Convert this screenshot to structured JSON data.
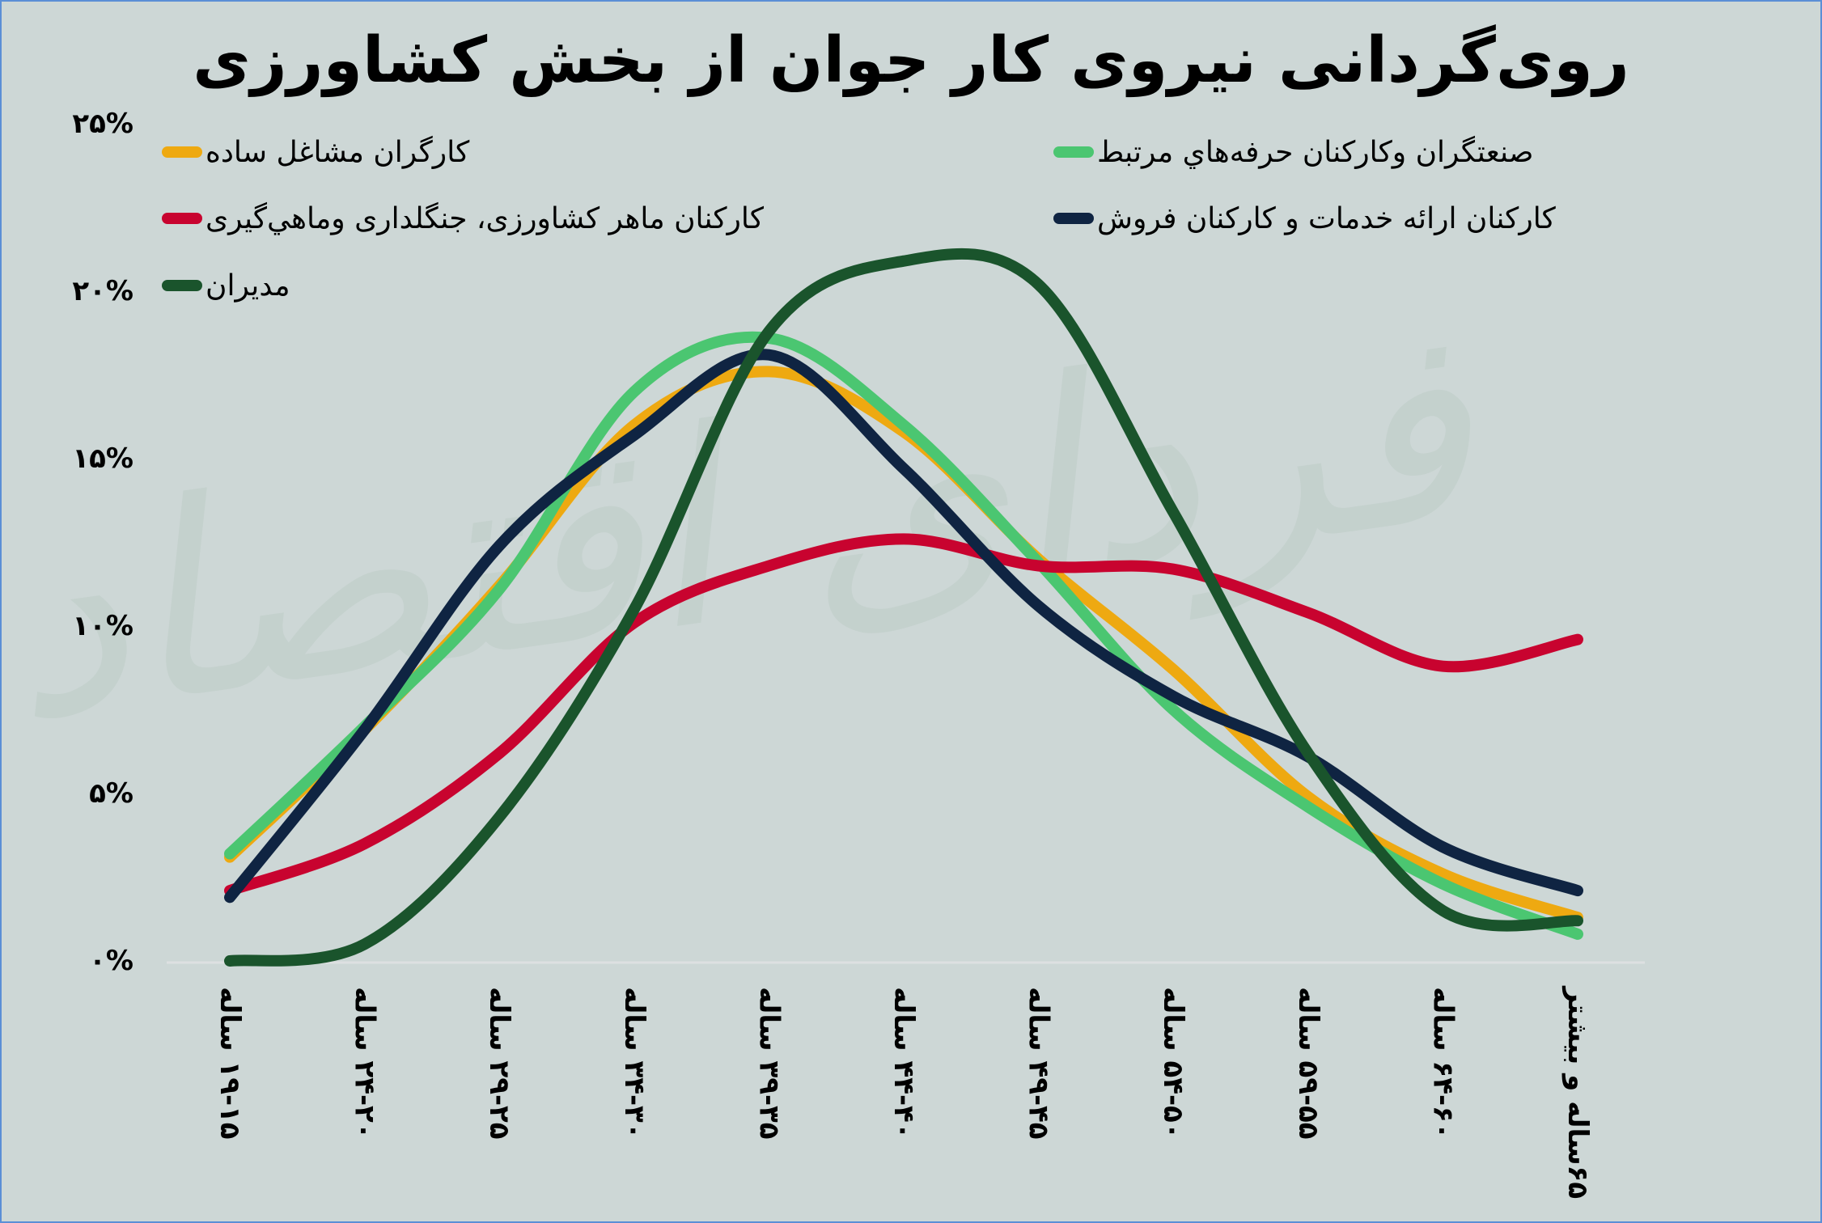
{
  "title": "روی‌گردانی نیروی کار جوان از بخش کشاورزی",
  "watermark": "فردای اقتصاد",
  "colors": {
    "background": "#cdd7d6",
    "border": "#5b8fd6",
    "axis": "#dddfe0"
  },
  "legend": [
    {
      "label": "کارگران مشاغل ساده",
      "color": "#eea911"
    },
    {
      "label": "کارکنان ماهر کشاورزی، جنگلداری وماهي‌گیری",
      "color": "#c8032f"
    },
    {
      "label": "مدیران",
      "color": "#1a542c"
    },
    {
      "label": "صنعتگران وکارکنان حرفه‌هاي مرتبط",
      "color": "#4bc671"
    },
    {
      "label": "کارکنان ارائه خدمات و کارکنان فروش",
      "color": "#0f2442"
    }
  ],
  "y_ticks": [
    "۰%",
    "۵%",
    "۱۰%",
    "۱۵%",
    "۲۰%",
    "۲۵%"
  ],
  "x_ticks": [
    "۱۹-۱۵ ساله",
    "۲۴-۲۰ ساله",
    "۲۹-۲۵ ساله",
    "۳۴-۳۰ ساله",
    "۳۹-۳۵ ساله",
    "۴۴-۴۰ ساله",
    "۴۹-۴۵ ساله",
    "۵۴-۵۰ ساله",
    "۵۹-۵۵ ساله",
    "۶۴-۶۰ ساله",
    "۶۵ساله و بیشتر"
  ],
  "chart_data": {
    "type": "line",
    "title": "روی‌گردانی نیروی کار جوان از بخش کشاورزی",
    "xlabel": "",
    "ylabel": "",
    "ylim": [
      0,
      25
    ],
    "y_unit": "%",
    "grid": false,
    "legend_position": "top",
    "smooth": true,
    "categories": [
      "۱۹-۱۵ ساله",
      "۲۴-۲۰ ساله",
      "۲۹-۲۵ ساله",
      "۳۴-۳۰ ساله",
      "۳۹-۳۵ ساله",
      "۴۴-۴۰ ساله",
      "۴۹-۴۵ ساله",
      "۵۴-۵۰ ساله",
      "۵۹-۵۵ ساله",
      "۶۴-۶۰ ساله",
      "۶۵ساله و بیشتر"
    ],
    "series": [
      {
        "name": "کارگران مشاغل ساده",
        "color": "#eea911",
        "values": [
          3.1,
          6.9,
          11.2,
          16.0,
          17.6,
          15.8,
          12.0,
          8.7,
          4.9,
          2.6,
          1.3
        ]
      },
      {
        "name": "صنعتگران وکارکنان حرفه‌هاي مرتبط",
        "color": "#4bc671",
        "values": [
          3.2,
          7.0,
          11.1,
          17.0,
          18.6,
          16.0,
          11.9,
          7.5,
          4.6,
          2.3,
          0.8
        ]
      },
      {
        "name": "کارکنان ماهر کشاورزی، جنگلداری وماهي‌گیری",
        "color": "#c8032f",
        "values": [
          2.1,
          3.5,
          6.2,
          10.1,
          11.8,
          12.6,
          11.8,
          11.7,
          10.4,
          8.8,
          9.6
        ]
      },
      {
        "name": "کارکنان ارائه خدمات و کارکنان فروش",
        "color": "#0f2442",
        "values": [
          1.9,
          6.9,
          12.4,
          15.7,
          18.1,
          14.7,
          10.6,
          7.9,
          6.1,
          3.4,
          2.1
        ]
      },
      {
        "name": "مدیران",
        "color": "#1a542c",
        "values": [
          0.0,
          0.5,
          4.3,
          10.5,
          18.8,
          20.9,
          20.2,
          13.4,
          6.2,
          1.5,
          1.2
        ]
      }
    ]
  }
}
